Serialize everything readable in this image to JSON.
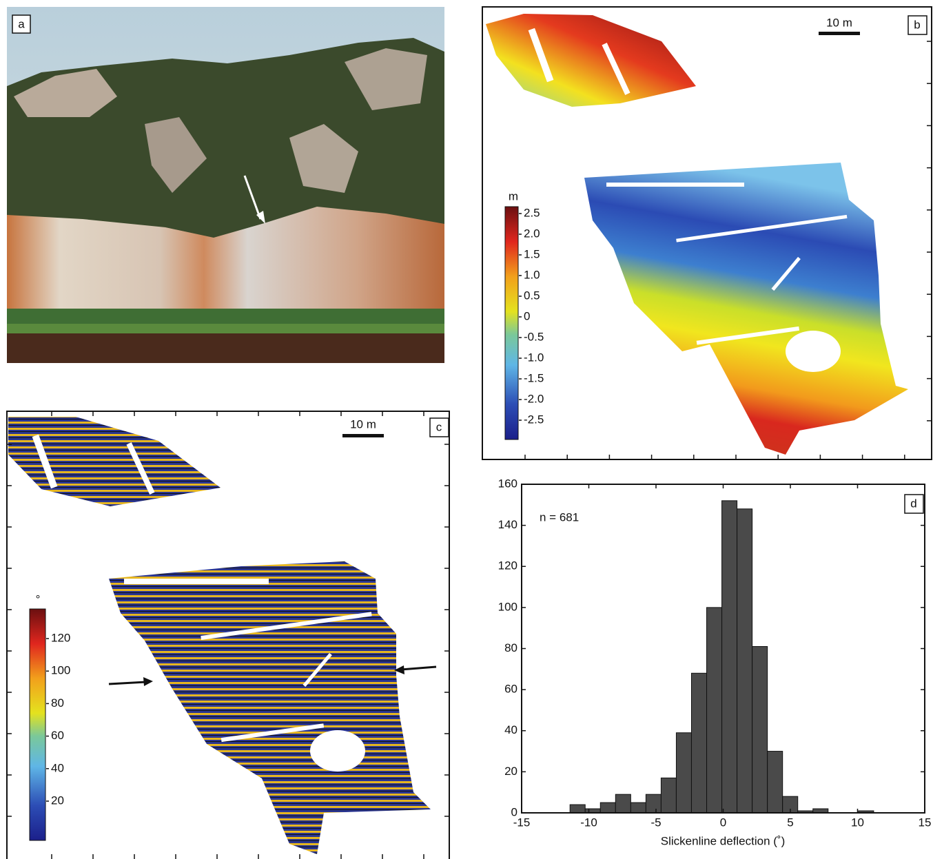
{
  "panels": {
    "a": {
      "label": "a"
    },
    "b": {
      "label": "b",
      "scale_bar": "10 m",
      "colorbar": {
        "label": "m",
        "ticks": [
          2.5,
          {
            "value": 2,
            "label": "2.0"
          },
          1.5,
          {
            "value": 1,
            "label": "1.0"
          },
          0.5,
          0,
          -0.5,
          {
            "value": -1,
            "label": "-1.0"
          },
          -1.5,
          {
            "value": -2,
            "label": "-2.0"
          },
          -2.5
        ]
      }
    },
    "c": {
      "label": "c",
      "scale_bar": "10 m",
      "colorbar": {
        "label": "°",
        "ticks": [
          120,
          100,
          80,
          60,
          40,
          20
        ]
      }
    }
  },
  "chart_data": {
    "type": "histogram",
    "panel_label": "d",
    "annotation": "n = 681",
    "x_label": "Slickenline deflection (˚)",
    "color": "#4a4a4a",
    "bins": [
      -11.4,
      -10.27,
      -9.14,
      -8.01,
      -6.88,
      -5.75,
      -4.62,
      -3.49,
      -2.36,
      -1.23,
      -0.1,
      1.03,
      2.16,
      3.29,
      4.42,
      5.55,
      6.68,
      7.81,
      8.94,
      10.07,
      11.2
    ],
    "values": [
      4,
      2,
      5,
      9,
      5,
      9,
      17,
      39,
      68,
      100,
      152,
      148,
      81,
      30,
      8,
      1,
      2,
      0,
      0,
      1
    ],
    "xlim": [
      -15,
      15
    ],
    "xticks": [
      -15,
      -10,
      -5,
      0,
      5,
      10,
      15
    ],
    "ylim": [
      0,
      160
    ],
    "yticks": [
      0,
      20,
      40,
      60,
      80,
      100,
      120,
      140,
      160
    ]
  }
}
